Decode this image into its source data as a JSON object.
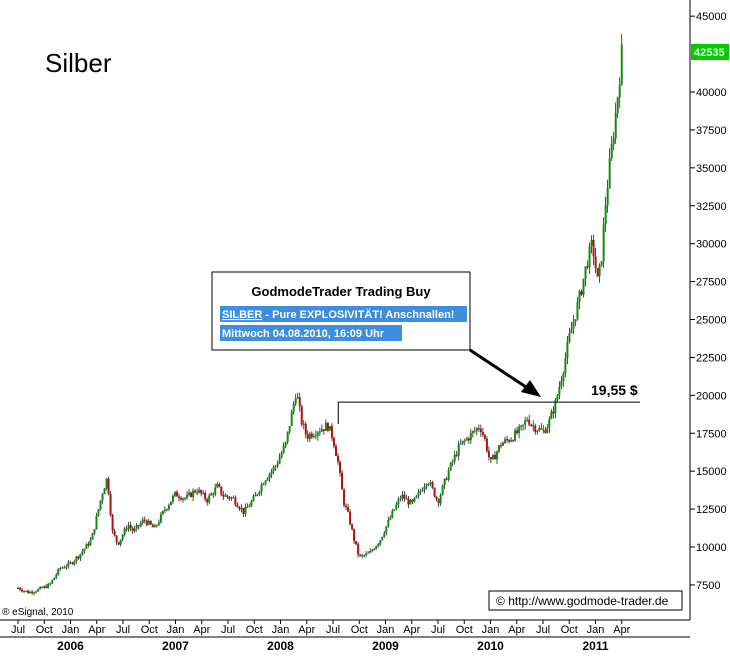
{
  "chart_data": {
    "type": "candlestick",
    "title": "Silber",
    "ylim": [
      6500,
      45000
    ],
    "y_ticks": [
      7500,
      10000,
      12500,
      15000,
      17500,
      20000,
      22500,
      25000,
      27500,
      30000,
      32500,
      35000,
      37500,
      40000,
      45000
    ],
    "y_tick_labels": [
      "7500",
      "10000",
      "12500",
      "15000",
      "17500",
      "20000",
      "22500",
      "25000",
      "27500",
      "30000",
      "32500",
      "35000",
      "37500",
      "40000",
      "45000"
    ],
    "last_value": "42535",
    "x_month_labels": [
      "Jul",
      "Oct",
      "Jan",
      "Apr",
      "Jul",
      "Oct",
      "Jan",
      "Apr",
      "Jul",
      "Oct",
      "Jan",
      "Apr",
      "Jul",
      "Oct",
      "Jan",
      "Apr",
      "Jul",
      "Oct",
      "Jan",
      "Apr",
      "Jul",
      "Oct",
      "Jan",
      "Apr"
    ],
    "x_year_labels": [
      "2006",
      "2007",
      "2008",
      "2009",
      "2010",
      "2011"
    ],
    "price_path": [
      [
        2005.5,
        7300
      ],
      [
        2005.6,
        7000
      ],
      [
        2005.7,
        7200
      ],
      [
        2005.8,
        7500
      ],
      [
        2005.9,
        8600
      ],
      [
        2006.0,
        8900
      ],
      [
        2006.1,
        9600
      ],
      [
        2006.2,
        10500
      ],
      [
        2006.3,
        13500
      ],
      [
        2006.35,
        14600
      ],
      [
        2006.4,
        11000
      ],
      [
        2006.45,
        10200
      ],
      [
        2006.55,
        11500
      ],
      [
        2006.6,
        11000
      ],
      [
        2006.7,
        11800
      ],
      [
        2006.8,
        11200
      ],
      [
        2006.9,
        12500
      ],
      [
        2007.0,
        13500
      ],
      [
        2007.1,
        13200
      ],
      [
        2007.2,
        13800
      ],
      [
        2007.3,
        13100
      ],
      [
        2007.4,
        14000
      ],
      [
        2007.45,
        13400
      ],
      [
        2007.55,
        13200
      ],
      [
        2007.65,
        12300
      ],
      [
        2007.75,
        13200
      ],
      [
        2007.85,
        14500
      ],
      [
        2007.95,
        15300
      ],
      [
        2008.05,
        16800
      ],
      [
        2008.15,
        20300
      ],
      [
        2008.2,
        18300
      ],
      [
        2008.25,
        17300
      ],
      [
        2008.35,
        17700
      ],
      [
        2008.45,
        18000
      ],
      [
        2008.5,
        17200
      ],
      [
        2008.55,
        15500
      ],
      [
        2008.6,
        13000
      ],
      [
        2008.65,
        12000
      ],
      [
        2008.7,
        10500
      ],
      [
        2008.75,
        9300
      ],
      [
        2008.85,
        9600
      ],
      [
        2008.95,
        10500
      ],
      [
        2009.05,
        12000
      ],
      [
        2009.15,
        13400
      ],
      [
        2009.25,
        12800
      ],
      [
        2009.3,
        13300
      ],
      [
        2009.4,
        14500
      ],
      [
        2009.5,
        13000
      ],
      [
        2009.6,
        15000
      ],
      [
        2009.7,
        16600
      ],
      [
        2009.8,
        17300
      ],
      [
        2009.9,
        18000
      ],
      [
        2009.95,
        17000
      ],
      [
        2010.0,
        15500
      ],
      [
        2010.1,
        16800
      ],
      [
        2010.2,
        17200
      ],
      [
        2010.3,
        17800
      ],
      [
        2010.35,
        18500
      ],
      [
        2010.4,
        18000
      ],
      [
        2010.5,
        17600
      ],
      [
        2010.55,
        18100
      ],
      [
        2010.62,
        19500
      ],
      [
        2010.7,
        22000
      ],
      [
        2010.75,
        23800
      ],
      [
        2010.85,
        26500
      ],
      [
        2010.92,
        28800
      ],
      [
        2010.97,
        30000
      ],
      [
        2011.02,
        27500
      ],
      [
        2011.05,
        28500
      ],
      [
        2011.1,
        33000
      ],
      [
        2011.15,
        36000
      ],
      [
        2011.2,
        39000
      ],
      [
        2011.25,
        42535
      ]
    ],
    "annotations": {
      "resistance_label": "19,55 $",
      "box_title": "GodmodeTrader Trading Buy",
      "box_link": "SILBER",
      "box_line1_rest": " - Pure EXPLOSIVITÄT! Anschnallen!",
      "box_line2": "Mittwoch 04.08.2010, 16:09 Uhr"
    },
    "source_left": "eSignal, 2010",
    "source_right": "http://www.godmode-trader.de",
    "colors": {
      "up": "#138a13",
      "down": "#b01111",
      "last_badge": "#00cc00",
      "box_highlight": "#3d8de0"
    }
  }
}
